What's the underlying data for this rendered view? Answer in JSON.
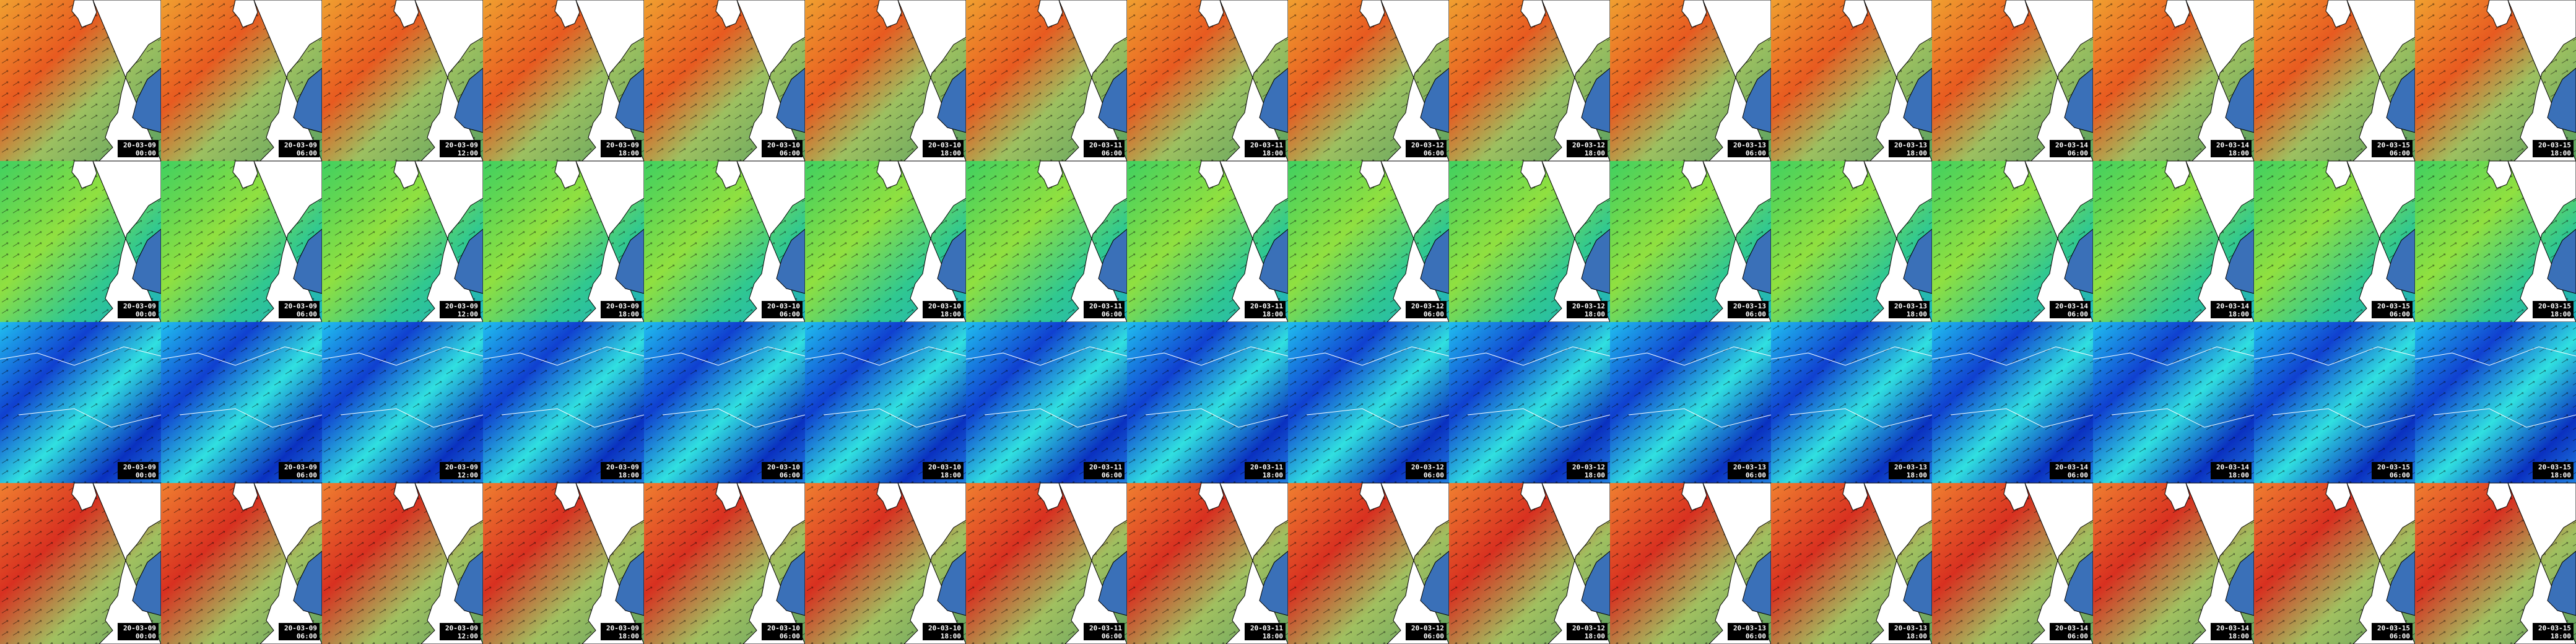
{
  "columns": [
    {
      "date": "20-03-09",
      "time": "00:00"
    },
    {
      "date": "20-03-09",
      "time": "06:00"
    },
    {
      "date": "20-03-09",
      "time": "12:00"
    },
    {
      "date": "20-03-09",
      "time": "18:00"
    },
    {
      "date": "20-03-10",
      "time": "06:00"
    },
    {
      "date": "20-03-10",
      "time": "18:00"
    },
    {
      "date": "20-03-11",
      "time": "06:00"
    },
    {
      "date": "20-03-11",
      "time": "18:00"
    },
    {
      "date": "20-03-12",
      "time": "06:00"
    },
    {
      "date": "20-03-12",
      "time": "18:00"
    },
    {
      "date": "20-03-13",
      "time": "06:00"
    },
    {
      "date": "20-03-13",
      "time": "18:00"
    },
    {
      "date": "20-03-14",
      "time": "06:00"
    },
    {
      "date": "20-03-14",
      "time": "18:00"
    },
    {
      "date": "20-03-15",
      "time": "06:00"
    },
    {
      "date": "20-03-15",
      "time": "18:00"
    }
  ]
}
